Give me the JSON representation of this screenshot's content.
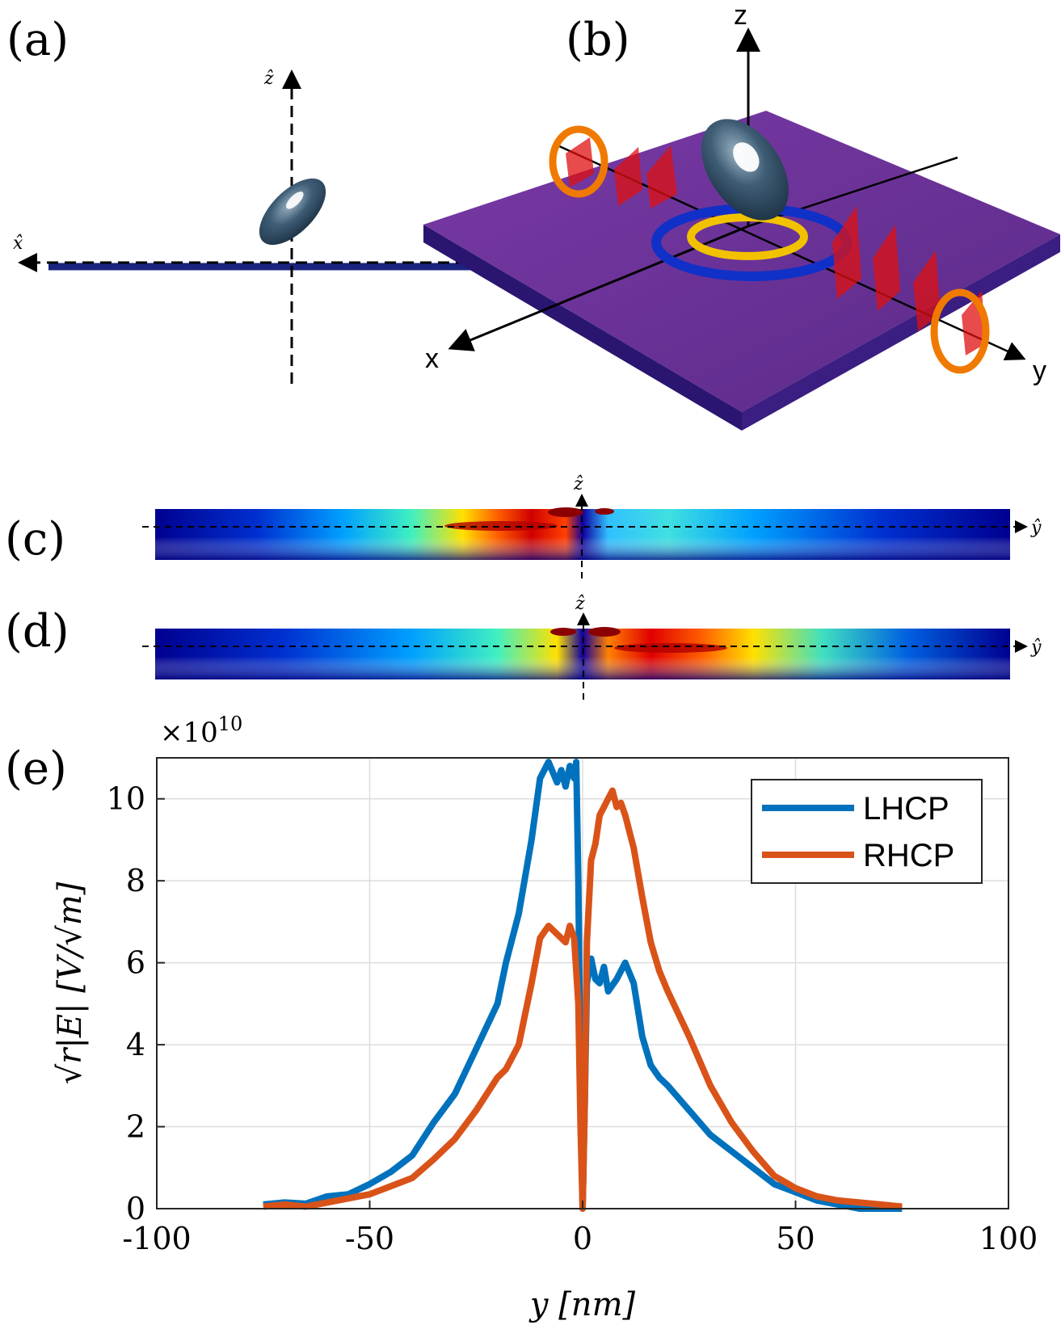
{
  "panels": {
    "a": {
      "label": "(a)",
      "axis_z": "ẑ",
      "axis_x": "x̂"
    },
    "b": {
      "label": "(b)",
      "axis_z": "z",
      "axis_x": "x",
      "axis_y": "y"
    },
    "c": {
      "label": "(c)",
      "axis_z": "ẑ",
      "axis_y": "ŷ"
    },
    "d": {
      "label": "(d)",
      "axis_z": "ẑ",
      "axis_y": "ŷ"
    },
    "e": {
      "label": "(e)"
    }
  },
  "colors": {
    "lhcp": "#0072BD",
    "rhcp": "#D95319",
    "substrate": "#6A2E95",
    "particle": "#3A5870"
  },
  "chart_data": {
    "type": "line",
    "title": "",
    "xlabel": "y [nm]",
    "ylabel": "√r|E| [V/√m]",
    "exponent_label": "×10",
    "exponent_power": "10",
    "xlim": [
      -100,
      100
    ],
    "ylim": [
      0,
      11
    ],
    "xticks": [
      -100,
      -50,
      0,
      50,
      100
    ],
    "yticks": [
      0,
      2,
      4,
      6,
      8,
      10
    ],
    "grid": true,
    "legend_position": "top-right",
    "series": [
      {
        "name": "LHCP",
        "x": [
          -75,
          -70,
          -65,
          -60,
          -55,
          -50,
          -45,
          -40,
          -35,
          -30,
          -25,
          -20,
          -18,
          -15,
          -12,
          -10,
          -8,
          -6,
          -5,
          -4,
          -3,
          -2,
          -1.5,
          -1,
          -0.5,
          0,
          0.5,
          1,
          2,
          3,
          4,
          5,
          6,
          8,
          10,
          12,
          14,
          16,
          18,
          20,
          25,
          30,
          35,
          40,
          45,
          50,
          55,
          60,
          65,
          70,
          75
        ],
        "y": [
          0.1,
          0.15,
          0.12,
          0.3,
          0.35,
          0.6,
          0.9,
          1.3,
          2.1,
          2.8,
          3.9,
          5.0,
          6.0,
          7.2,
          9.0,
          10.5,
          10.9,
          10.4,
          10.7,
          10.3,
          10.8,
          10.5,
          10.9,
          8.0,
          3.0,
          0.0,
          2.5,
          5.5,
          6.1,
          5.6,
          5.5,
          5.9,
          5.3,
          5.6,
          6.0,
          5.5,
          4.2,
          3.5,
          3.2,
          3.0,
          2.4,
          1.8,
          1.4,
          1.0,
          0.6,
          0.4,
          0.2,
          0.1,
          0.0,
          0.0,
          0.0
        ]
      },
      {
        "name": "RHCP",
        "x": [
          -75,
          -70,
          -65,
          -60,
          -55,
          -50,
          -45,
          -40,
          -35,
          -30,
          -25,
          -20,
          -18,
          -15,
          -12,
          -10,
          -8,
          -6,
          -4,
          -3,
          -2,
          -1,
          -0.5,
          0,
          0.5,
          1,
          2,
          3,
          4,
          5,
          6,
          7,
          8,
          9,
          10,
          12,
          14,
          16,
          18,
          20,
          25,
          30,
          35,
          40,
          45,
          50,
          55,
          60,
          65,
          70,
          75
        ],
        "y": [
          0.05,
          0.1,
          0.05,
          0.15,
          0.25,
          0.35,
          0.55,
          0.75,
          1.2,
          1.7,
          2.4,
          3.2,
          3.4,
          4.0,
          5.5,
          6.6,
          6.9,
          6.7,
          6.5,
          6.9,
          6.6,
          5.0,
          2.0,
          0.0,
          2.5,
          6.5,
          8.5,
          8.9,
          9.6,
          9.8,
          10.0,
          10.2,
          9.8,
          9.9,
          9.6,
          8.8,
          7.6,
          6.5,
          5.8,
          5.3,
          4.2,
          3.0,
          2.1,
          1.4,
          0.8,
          0.5,
          0.3,
          0.2,
          0.15,
          0.1,
          0.05
        ]
      }
    ]
  }
}
